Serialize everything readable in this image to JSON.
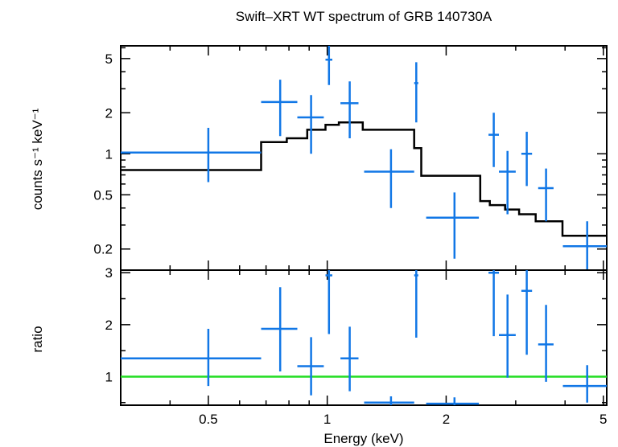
{
  "chart_data": {
    "type": "scatter",
    "title": "Swift–XRT WT spectrum of GRB 140730A",
    "xlabel": "Energy (keV)",
    "x_scale": "log",
    "xlim": [
      0.3,
      5.1
    ],
    "x_ticks": [
      0.5,
      1,
      2,
      5
    ],
    "x_tick_labels": [
      "0.5",
      "1",
      "2",
      "5"
    ],
    "colors": {
      "data": "#1177e6",
      "model": "#000000",
      "unity_line": "#22dd22"
    },
    "panels": [
      {
        "id": "spectrum",
        "ylabel": "counts s⁻¹ keV⁻¹",
        "y_scale": "log",
        "ylim": [
          0.14,
          6.2
        ],
        "y_ticks": [
          0.2,
          0.5,
          1,
          2,
          5
        ],
        "y_tick_labels": [
          "0.2",
          "0.5",
          "1",
          "2",
          "5"
        ],
        "data": [
          {
            "x": 0.5,
            "xlo": 0.3,
            "xhi": 0.68,
            "y": 1.02,
            "ylo": 0.62,
            "yhi": 1.55
          },
          {
            "x": 0.76,
            "xlo": 0.68,
            "xhi": 0.84,
            "y": 2.4,
            "ylo": 1.35,
            "yhi": 3.5
          },
          {
            "x": 0.91,
            "xlo": 0.84,
            "xhi": 0.98,
            "y": 1.85,
            "ylo": 1.0,
            "yhi": 2.7
          },
          {
            "x": 1.01,
            "xlo": 0.99,
            "xhi": 1.03,
            "y": 4.9,
            "ylo": 3.2,
            "yhi": 6.2
          },
          {
            "x": 1.14,
            "xlo": 1.08,
            "xhi": 1.2,
            "y": 2.35,
            "ylo": 1.3,
            "yhi": 3.4
          },
          {
            "x": 1.45,
            "xlo": 1.24,
            "xhi": 1.66,
            "y": 0.74,
            "ylo": 0.4,
            "yhi": 1.08
          },
          {
            "x": 1.68,
            "xlo": 1.66,
            "xhi": 1.7,
            "y": 3.3,
            "ylo": 1.7,
            "yhi": 4.7
          },
          {
            "x": 2.1,
            "xlo": 1.78,
            "xhi": 2.42,
            "y": 0.34,
            "ylo": 0.17,
            "yhi": 0.52
          },
          {
            "x": 2.64,
            "xlo": 2.56,
            "xhi": 2.72,
            "y": 1.38,
            "ylo": 0.8,
            "yhi": 2.0
          },
          {
            "x": 2.86,
            "xlo": 2.72,
            "xhi": 3.0,
            "y": 0.74,
            "ylo": 0.36,
            "yhi": 1.05
          },
          {
            "x": 3.2,
            "xlo": 3.1,
            "xhi": 3.3,
            "y": 1.0,
            "ylo": 0.58,
            "yhi": 1.45
          },
          {
            "x": 3.58,
            "xlo": 3.42,
            "xhi": 3.74,
            "y": 0.56,
            "ylo": 0.32,
            "yhi": 0.78
          },
          {
            "x": 4.55,
            "xlo": 3.95,
            "xhi": 5.1,
            "y": 0.21,
            "ylo": 0.13,
            "yhi": 0.32
          }
        ],
        "model": {
          "edges": [
            0.3,
            0.68,
            0.79,
            0.89,
            0.99,
            1.07,
            1.23,
            1.66,
            1.73,
            2.44,
            2.58,
            2.82,
            3.06,
            3.37,
            3.94,
            5.1
          ],
          "values": [
            0.76,
            1.22,
            1.3,
            1.5,
            1.63,
            1.7,
            1.5,
            1.1,
            0.69,
            0.45,
            0.42,
            0.39,
            0.36,
            0.32,
            0.25
          ]
        }
      },
      {
        "id": "ratio",
        "ylabel": "ratio",
        "y_scale": "linear",
        "ylim": [
          0.45,
          3.05
        ],
        "y_ticks": [
          1,
          2,
          3
        ],
        "y_tick_labels": [
          "1",
          "2",
          "3"
        ],
        "reference_y": 1,
        "data": [
          {
            "x": 0.5,
            "xlo": 0.3,
            "xhi": 0.68,
            "y": 1.35,
            "ylo": 0.82,
            "yhi": 1.92
          },
          {
            "x": 0.76,
            "xlo": 0.68,
            "xhi": 0.84,
            "y": 1.92,
            "ylo": 1.1,
            "yhi": 2.72
          },
          {
            "x": 0.91,
            "xlo": 0.84,
            "xhi": 0.98,
            "y": 1.2,
            "ylo": 0.64,
            "yhi": 1.76
          },
          {
            "x": 1.01,
            "xlo": 0.99,
            "xhi": 1.03,
            "y": 2.95,
            "ylo": 1.82,
            "yhi": 3.05
          },
          {
            "x": 1.14,
            "xlo": 1.08,
            "xhi": 1.2,
            "y": 1.35,
            "ylo": 0.72,
            "yhi": 1.96
          },
          {
            "x": 1.45,
            "xlo": 1.24,
            "xhi": 1.66,
            "y": 0.5,
            "ylo": 0.45,
            "yhi": 0.62
          },
          {
            "x": 1.68,
            "xlo": 1.66,
            "xhi": 1.7,
            "y": 2.95,
            "ylo": 1.75,
            "yhi": 3.05
          },
          {
            "x": 2.1,
            "xlo": 1.78,
            "xhi": 2.42,
            "y": 0.48,
            "ylo": 0.45,
            "yhi": 0.6
          },
          {
            "x": 2.64,
            "xlo": 2.56,
            "xhi": 2.72,
            "y": 3.0,
            "ylo": 1.78,
            "yhi": 3.05
          },
          {
            "x": 2.86,
            "xlo": 2.72,
            "xhi": 3.0,
            "y": 1.8,
            "ylo": 0.98,
            "yhi": 2.58
          },
          {
            "x": 3.2,
            "xlo": 3.1,
            "xhi": 3.3,
            "y": 2.65,
            "ylo": 1.42,
            "yhi": 3.05
          },
          {
            "x": 3.58,
            "xlo": 3.42,
            "xhi": 3.74,
            "y": 1.62,
            "ylo": 0.9,
            "yhi": 2.38
          },
          {
            "x": 4.55,
            "xlo": 3.95,
            "xhi": 5.1,
            "y": 0.82,
            "ylo": 0.5,
            "yhi": 1.22
          }
        ]
      }
    ]
  }
}
